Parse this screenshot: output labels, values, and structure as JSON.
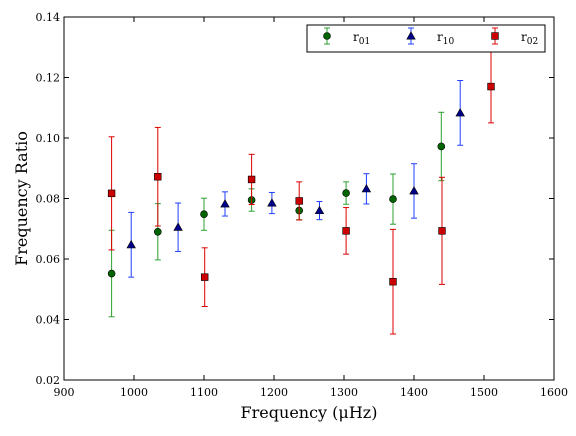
{
  "chart_data": {
    "type": "scatter",
    "xlabel": "Frequency (μHz)",
    "ylabel": "Frequency Ratio",
    "xlim": [
      900,
      1600
    ],
    "ylim": [
      0.02,
      0.14
    ],
    "xticks": [
      900,
      1000,
      1100,
      1200,
      1300,
      1400,
      1500,
      1600
    ],
    "yticks": [
      0.02,
      0.04,
      0.06,
      0.08,
      0.1,
      0.12,
      0.14
    ],
    "xtick_labels": [
      "900",
      "1000",
      "1100",
      "1200",
      "1300",
      "1400",
      "1500",
      "1600"
    ],
    "ytick_labels": [
      "0.02",
      "0.04",
      "0.06",
      "0.08",
      "0.10",
      "0.12",
      "0.14"
    ],
    "grid": false,
    "legend_position": "top-right",
    "series": [
      {
        "name": "r01",
        "name_base": "r",
        "name_sub": "01",
        "marker": "circle",
        "color": "#006400",
        "error_color": "#2ca02c",
        "points": [
          {
            "x": 968,
            "y": 0.0552,
            "err": 0.0143
          },
          {
            "x": 1034,
            "y": 0.069,
            "err": 0.0093
          },
          {
            "x": 1100,
            "y": 0.0748,
            "err": 0.0053
          },
          {
            "x": 1168,
            "y": 0.0795,
            "err": 0.0037
          },
          {
            "x": 1236,
            "y": 0.076,
            "err": 0.003
          },
          {
            "x": 1303,
            "y": 0.0818,
            "err": 0.0037
          },
          {
            "x": 1370,
            "y": 0.0798,
            "err": 0.0083
          },
          {
            "x": 1439,
            "y": 0.0972,
            "err": 0.0113
          }
        ]
      },
      {
        "name": "r10",
        "name_base": "r",
        "name_sub": "10",
        "marker": "triangle",
        "color": "#00008b",
        "error_color": "#1f3fff",
        "points": [
          {
            "x": 996,
            "y": 0.0647,
            "err": 0.0107
          },
          {
            "x": 1063,
            "y": 0.0705,
            "err": 0.008
          },
          {
            "x": 1130,
            "y": 0.0782,
            "err": 0.004
          },
          {
            "x": 1197,
            "y": 0.0785,
            "err": 0.0035
          },
          {
            "x": 1265,
            "y": 0.076,
            "err": 0.003
          },
          {
            "x": 1332,
            "y": 0.0832,
            "err": 0.005
          },
          {
            "x": 1400,
            "y": 0.0825,
            "err": 0.009
          },
          {
            "x": 1466,
            "y": 0.1083,
            "err": 0.0107
          }
        ]
      },
      {
        "name": "r02",
        "name_base": "r",
        "name_sub": "02",
        "marker": "square",
        "color": "#cc0000",
        "error_color": "#dd0000",
        "points": [
          {
            "x": 968,
            "y": 0.0817,
            "err": 0.0187
          },
          {
            "x": 1034,
            "y": 0.0872,
            "err": 0.0163
          },
          {
            "x": 1101,
            "y": 0.054,
            "err": 0.0097
          },
          {
            "x": 1168,
            "y": 0.0863,
            "err": 0.0083
          },
          {
            "x": 1236,
            "y": 0.0792,
            "err": 0.0063
          },
          {
            "x": 1303,
            "y": 0.0693,
            "err": 0.0077
          },
          {
            "x": 1370,
            "y": 0.0525,
            "err": 0.0173
          },
          {
            "x": 1440,
            "y": 0.0693,
            "err": 0.0177
          },
          {
            "x": 1510,
            "y": 0.117,
            "err": 0.012
          }
        ]
      }
    ]
  }
}
